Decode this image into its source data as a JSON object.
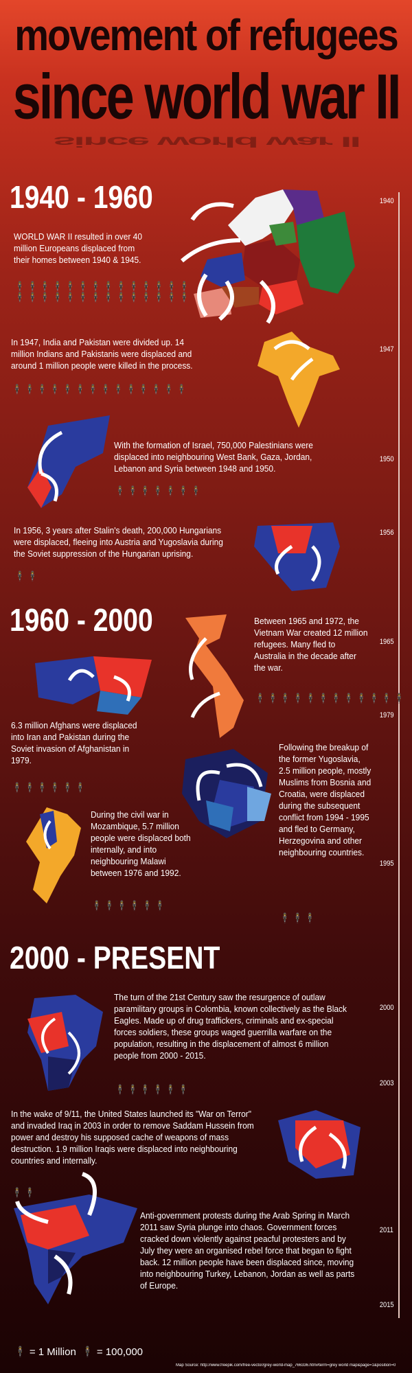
{
  "title": {
    "line1": "movement of refugees",
    "line2": "since world war II"
  },
  "eras": {
    "e1": "1940 - 1960",
    "e2": "1960 - 2000",
    "e3": "2000 - PRESENT"
  },
  "events": {
    "ww2": "WORLD WAR II resulted in over 40 million Europeans displaced from their homes between 1940 & 1945.",
    "india": "In 1947, India and Pakistan were divided up. 14 million Indians and Pakistanis were displaced and around 1 million people were killed in the process.",
    "israel": "With the formation of Israel, 750,000 Palestinians were displaced into neighbouring West Bank, Gaza, Jordan, Lebanon and Syria between 1948 and 1950.",
    "hungary": "In 1956, 3 years after Stalin's death, 200,000 Hungarians were displaced, fleeing into Austria and Yugoslavia during the Soviet suppression of the Hungarian uprising.",
    "vietnam": "Between 1965 and 1972, the Vietnam War created 12 million refugees. Many fled to Australia in the decade after the war.",
    "afghan": "6.3 million Afghans were displaced into Iran and Pakistan during the Soviet invasion of Afghanistan in 1979.",
    "yugo": "Following the breakup of the former Yugoslavia, 2.5 million people, mostly Muslims from Bosnia and Croatia, were displaced during the subsequent conflict from 1994 - 1995 and fled to Germany, Herzegovina and other neighbouring countries.",
    "mozambique": "During the civil war in Mozambique, 5.7 million people were displaced both internally, and into neighbouring Malawi between 1976 and 1992.",
    "colombia": "The turn of the 21st Century saw the resurgence of outlaw paramilitary groups in Colombia, known collectively as the Black Eagles. Made up of drug traffickers, criminals and ex-special forces soldiers, these groups waged guerrilla warfare on the population, resulting in the displacement of almost 6 million people from 2000 - 2015.",
    "iraq": "In the wake of 9/11, the United States launched its \"War on Terror\" and invaded Iraq in 2003 in order to remove Saddam Hussein from power and destroy his supposed cache of weapons of mass destruction. 1.9 million Iraqis were displaced into neighbouring countries and internally.",
    "syria": "Anti-government protests during the Arab Spring in March 2011 saw Syria plunge into chaos. Government forces cracked down violently against peacful protesters and by July they were an organised rebel force that began to fight back. 12 million people have been displaced since, moving into neighbouring Turkey, Lebanon, Jordan as well as parts of Europe."
  },
  "timeline": [
    "1940",
    "1947",
    "1950",
    "1956",
    "1965",
    "1979",
    "1995",
    "2000",
    "2003",
    "2011",
    "2015"
  ],
  "legend": {
    "red": "= 1 Million",
    "yellow": "= 100,000"
  },
  "source": "Map Source: http://www.freepik.com/free-vector/grey-world-map_766336.htm#term=grey world map&page=1&position=0",
  "colors": {
    "red": "#e8332a",
    "yellow": "#f3a82a",
    "blue": "#2a3b9e"
  }
}
